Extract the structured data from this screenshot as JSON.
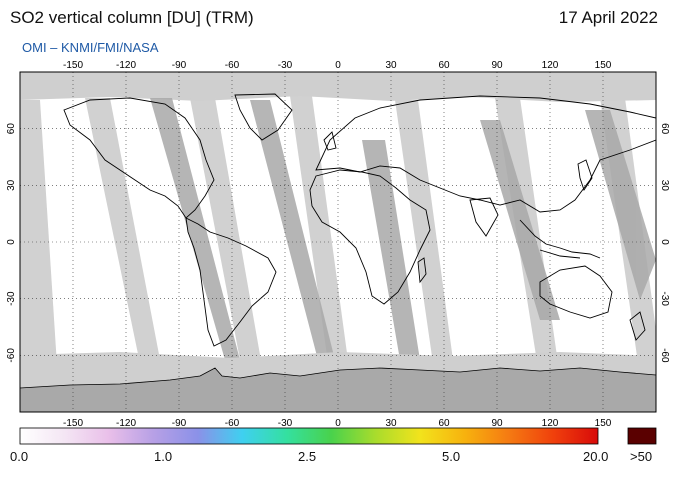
{
  "header": {
    "title": "SO2 vertical column [DU] (TRM)",
    "date": "17 April 2022",
    "credit": "OMI  –  KNMI/FMI/NASA"
  },
  "map": {
    "projection": "equirectangular",
    "lon_ticks": [
      "-150",
      "-120",
      "-90",
      "-60",
      "-30",
      "0",
      "30",
      "60",
      "90",
      "120",
      "150"
    ],
    "lat_ticks": [
      "60",
      "30",
      "0",
      "-30",
      "-60"
    ],
    "lon_range": [
      -180,
      180
    ],
    "lat_range": [
      -90,
      90
    ],
    "graticule": "dotted",
    "colors": {
      "no_data": "#cfcfcf",
      "gap_strip": "#a9a9a9",
      "antarctica": "#a9a9a9",
      "background": "#ffffff",
      "coastline": "#000000"
    }
  },
  "colorbar": {
    "labels": [
      "0.0",
      "1.0",
      "2.5",
      "5.0",
      "20.0"
    ],
    "overflow_label": ">50",
    "overflow_color": "#5a0000",
    "stops": [
      "#ffffff",
      "#f4e6f4",
      "#e9bfe9",
      "#b7a0e6",
      "#8b91e8",
      "#3fd0f0",
      "#34e0a0",
      "#49d24c",
      "#a9dc2c",
      "#f2e31c",
      "#f7b20e",
      "#f57a12",
      "#f0400c",
      "#d80a0a"
    ]
  }
}
